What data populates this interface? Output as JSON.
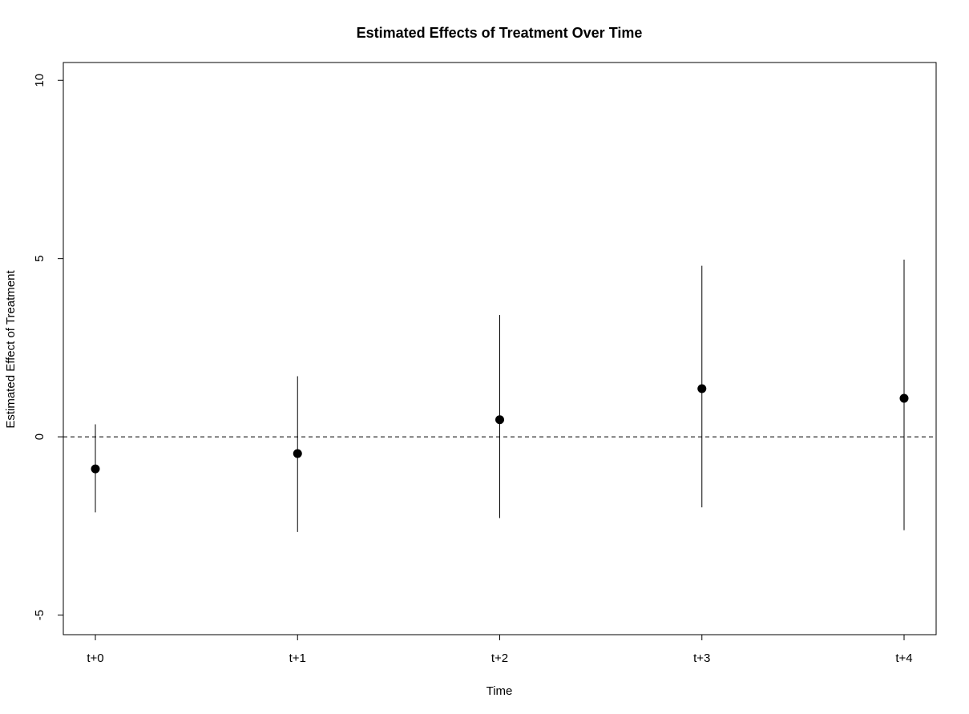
{
  "chart_data": {
    "type": "scatter",
    "title": "Estimated Effects of Treatment Over Time",
    "xlabel": "Time",
    "ylabel": "Estimated Effect of Treatment",
    "categories": [
      "t+0",
      "t+1",
      "t+2",
      "t+3",
      "t+4"
    ],
    "series": [
      {
        "estimates": [
          -0.9,
          -0.47,
          0.48,
          1.35,
          1.08
        ],
        "lower": [
          -2.12,
          -2.67,
          -2.28,
          -1.98,
          -2.62
        ],
        "upper": [
          0.35,
          1.7,
          3.42,
          4.8,
          4.97
        ]
      }
    ],
    "ylim": [
      -5.55,
      10.5
    ],
    "yticks": [
      -5,
      0,
      5,
      10
    ],
    "yticks_labels": [
      "-5",
      "0",
      "5",
      "10"
    ],
    "reference_line": {
      "y": 0,
      "style": "dashed"
    },
    "grid": false,
    "legend": "none",
    "colors": {
      "points": "#000000",
      "lines": "#000000",
      "background": "#ffffff"
    }
  }
}
